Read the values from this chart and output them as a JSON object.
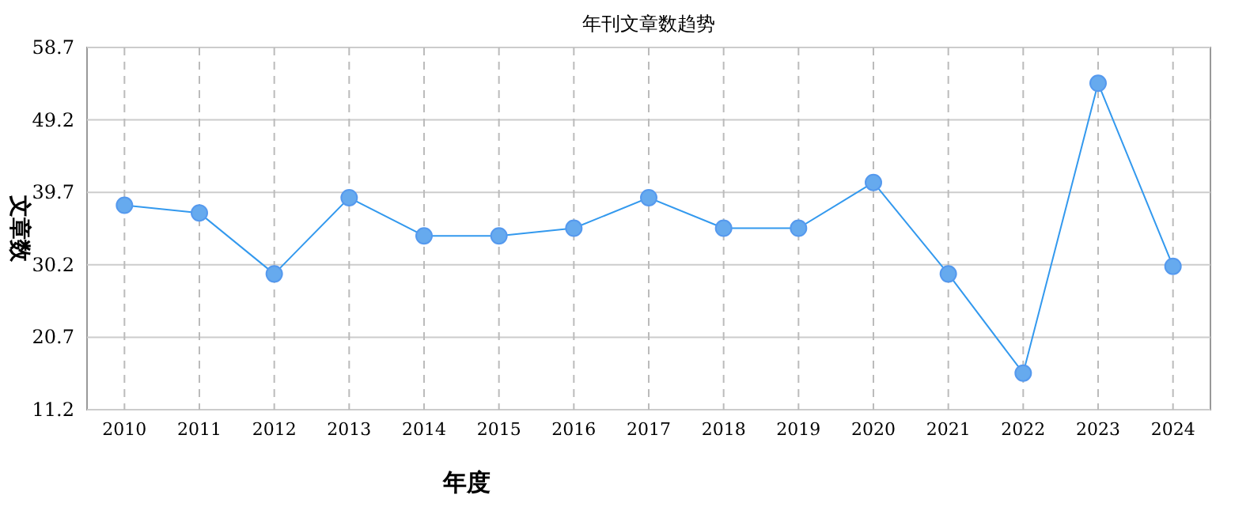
{
  "chart_data": {
    "type": "line",
    "title": "年刊文章数趋势",
    "xlabel": "年度",
    "ylabel": "文章数",
    "categories": [
      "2010",
      "2011",
      "2012",
      "2013",
      "2014",
      "2015",
      "2016",
      "2017",
      "2018",
      "2019",
      "2020",
      "2021",
      "2022",
      "2023",
      "2024"
    ],
    "series": [
      {
        "color": "#3399ee",
        "values": [
          38,
          37,
          29,
          39,
          34,
          34,
          35,
          39,
          35,
          35,
          41,
          29,
          16,
          54,
          30
        ]
      }
    ],
    "ylim": [
      11.2,
      58.7
    ],
    "yticks": [
      11.2,
      20.7,
      30.2,
      39.7,
      49.2,
      58.7
    ],
    "grid": true,
    "marker": "circle",
    "line_style": "solid"
  }
}
